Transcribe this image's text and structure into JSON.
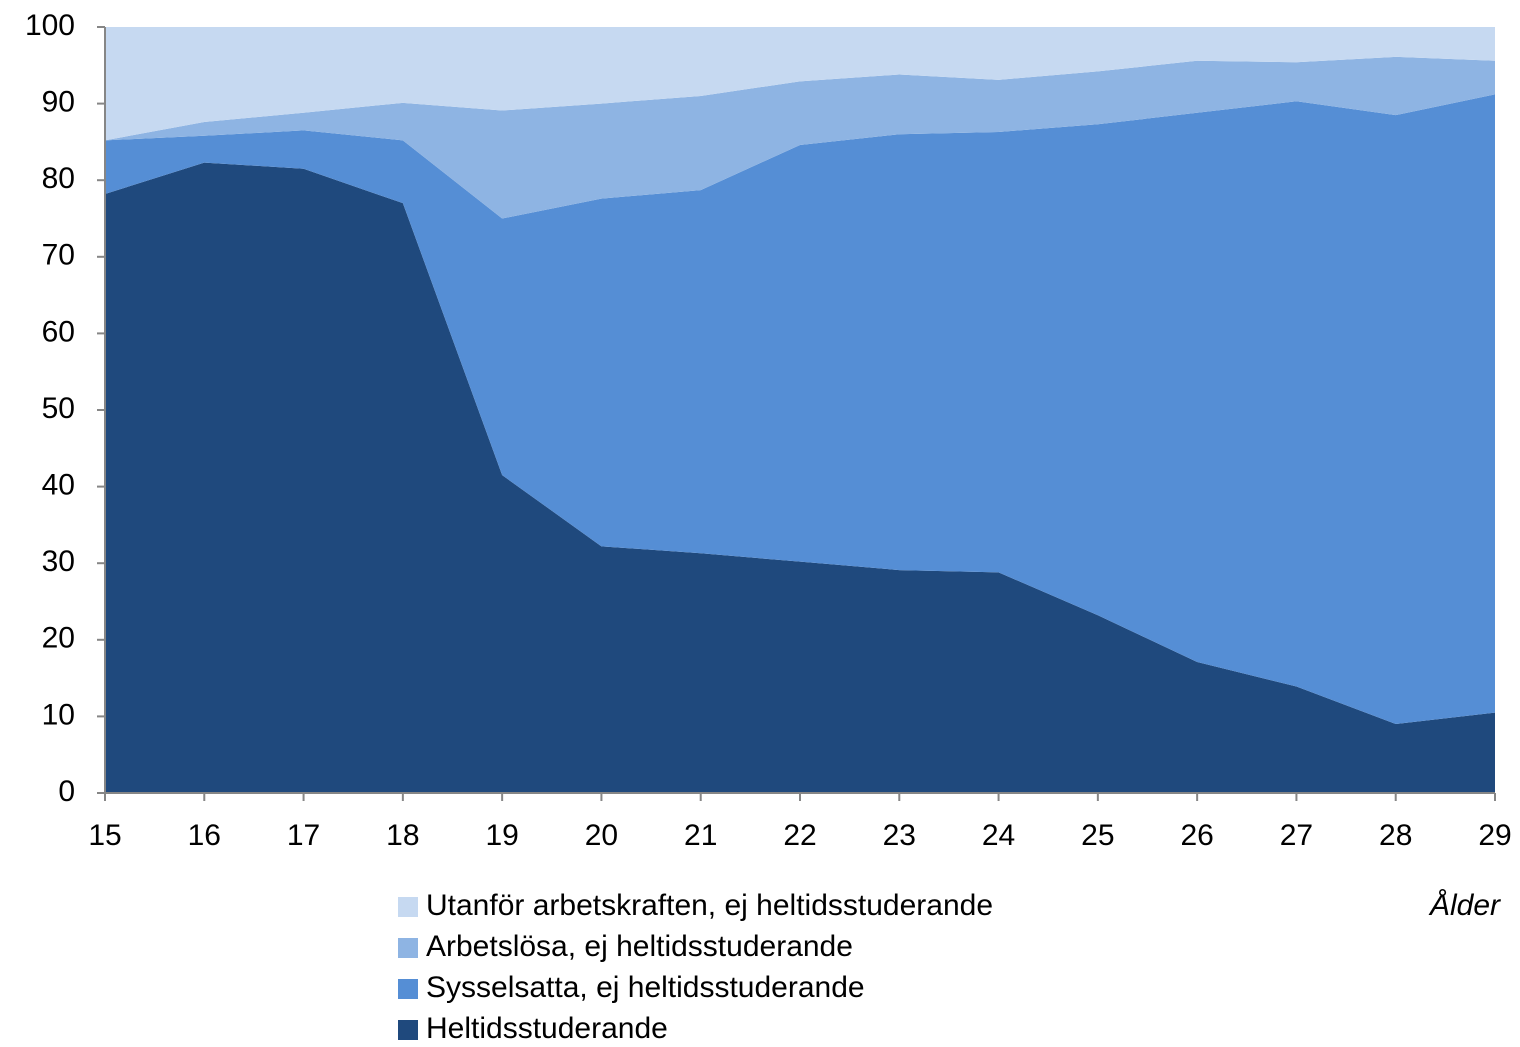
{
  "chart_data": {
    "type": "stacked_area",
    "x": [
      15,
      16,
      17,
      18,
      19,
      20,
      21,
      22,
      23,
      24,
      25,
      26,
      27,
      28,
      29
    ],
    "series": [
      {
        "name": "Heltidsstuderande",
        "color": "#1f497d",
        "values": [
          78.2,
          82.3,
          81.5,
          77,
          41.5,
          32.2,
          31.3,
          30.2,
          29.1,
          28.8,
          23.2,
          17.1,
          13.9,
          9,
          10.5
        ]
      },
      {
        "name": "Sysselsatta, ej heltidsstuderande",
        "color": "#558ed5",
        "values": [
          7.0,
          3.5,
          5.0,
          8.2,
          33.5,
          45.4,
          47.4,
          54.4,
          56.9,
          57.5,
          64.1,
          71.7,
          76.4,
          79.5,
          80.7
        ]
      },
      {
        "name": "Arbetslösa, ej heltidsstuderande",
        "color": "#8eb4e3",
        "values": [
          0,
          1.8,
          2.3,
          4.9,
          14.1,
          12.4,
          12.3,
          8.3,
          7.8,
          6.8,
          6.9,
          6.8,
          5.1,
          7.6,
          4.4
        ]
      },
      {
        "name": "Utanför arbetskraften, ej heltidsstuderande",
        "color": "#c6d9f1",
        "values": [
          14.8,
          12.4,
          11.2,
          9.9,
          10.9,
          10.0,
          9.0,
          7.1,
          6.2,
          6.9,
          5.8,
          4.4,
          4.6,
          3.9,
          4.4
        ]
      }
    ],
    "x_label": "Ålder",
    "xlim": [
      15,
      29
    ],
    "xticks": [
      15,
      16,
      17,
      18,
      19,
      20,
      21,
      22,
      23,
      24,
      25,
      26,
      27,
      28,
      29
    ],
    "ylim": [
      0,
      100
    ],
    "yticks": [
      0,
      10,
      20,
      30,
      40,
      50,
      60,
      70,
      80,
      90,
      100
    ],
    "grid": false,
    "legend": "bottom"
  }
}
